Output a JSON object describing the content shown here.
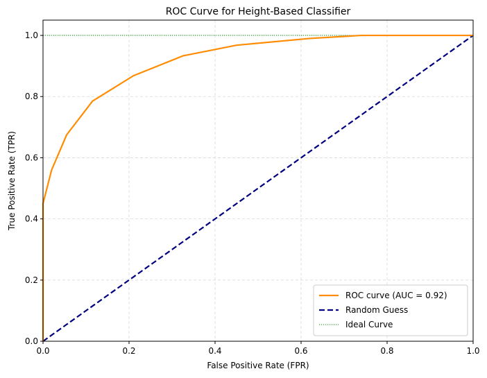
{
  "chart_data": {
    "type": "line",
    "title": "ROC Curve for Height-Based Classifier",
    "xlabel": "False Positive Rate (FPR)",
    "ylabel": "True Positive Rate (TPR)",
    "xlim": [
      0.0,
      1.0
    ],
    "ylim": [
      0.0,
      1.05
    ],
    "xticks": [
      0.0,
      0.2,
      0.4,
      0.6,
      0.8,
      1.0
    ],
    "xtick_labels": [
      "0.0",
      "0.2",
      "0.4",
      "0.6",
      "0.8",
      "1.0"
    ],
    "yticks": [
      0.0,
      0.2,
      0.4,
      0.6,
      0.8,
      1.0
    ],
    "ytick_labels": [
      "0.0",
      "0.2",
      "0.4",
      "0.6",
      "0.8",
      "1.0"
    ],
    "grid": true,
    "legend_position": "lower-right",
    "series": [
      {
        "name": "ROC curve (AUC = 0.92)",
        "color": "#ff8c00",
        "style": "solid",
        "x": [
          0.0,
          0.0,
          0.0,
          0.02,
          0.055,
          0.115,
          0.21,
          0.325,
          0.45,
          0.62,
          0.74,
          0.9,
          1.0
        ],
        "y": [
          0.0,
          0.15,
          0.45,
          0.56,
          0.675,
          0.785,
          0.868,
          0.933,
          0.968,
          0.99,
          1.0,
          1.0,
          1.0
        ]
      },
      {
        "name": "Random Guess",
        "color": "#000080",
        "style": "dashed",
        "x": [
          0.0,
          1.0
        ],
        "y": [
          0.0,
          1.0
        ]
      },
      {
        "name": "Ideal Curve",
        "color": "#008000",
        "style": "dotted",
        "x": [
          0.0,
          1.0
        ],
        "y": [
          1.0,
          1.0
        ]
      }
    ]
  }
}
